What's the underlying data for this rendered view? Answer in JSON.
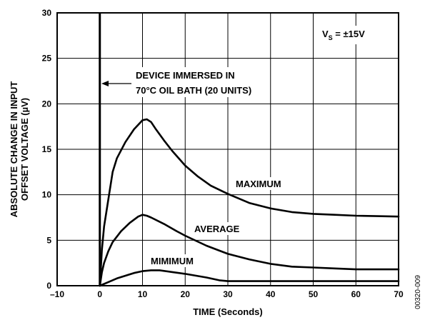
{
  "chart_data": {
    "type": "line",
    "xlabel": "TIME (Seconds)",
    "ylabel_line1": "ABSOLUTE CHANGE IN INPUT",
    "ylabel_line2": "OFFSET VOLTAGE (µV)",
    "xlim": [
      -10,
      70
    ],
    "ylim": [
      0,
      30
    ],
    "x_ticks": [
      -10,
      0,
      10,
      20,
      30,
      40,
      50,
      60,
      70
    ],
    "x_tick_labels": [
      "–10",
      "0",
      "10",
      "20",
      "30",
      "40",
      "50",
      "60",
      "70"
    ],
    "y_ticks": [
      0,
      5,
      10,
      15,
      20,
      25,
      30
    ],
    "y_tick_labels": [
      "0",
      "5",
      "10",
      "15",
      "20",
      "25",
      "30"
    ],
    "grid": true,
    "legend": "none",
    "series": [
      {
        "name": "MAXIMUM",
        "points": [
          [
            0,
            0
          ],
          [
            0.5,
            4
          ],
          [
            1,
            6.5
          ],
          [
            2,
            9.5
          ],
          [
            3,
            12.5
          ],
          [
            4,
            14
          ],
          [
            6,
            15.8
          ],
          [
            8,
            17.2
          ],
          [
            10,
            18.2
          ],
          [
            11,
            18.3
          ],
          [
            12,
            18
          ],
          [
            13,
            17.3
          ],
          [
            15,
            16
          ],
          [
            17,
            14.8
          ],
          [
            20,
            13.2
          ],
          [
            23,
            12
          ],
          [
            26,
            11
          ],
          [
            30,
            10.1
          ],
          [
            35,
            9.1
          ],
          [
            40,
            8.5
          ],
          [
            45,
            8.1
          ],
          [
            50,
            7.9
          ],
          [
            55,
            7.8
          ],
          [
            60,
            7.7
          ],
          [
            65,
            7.65
          ],
          [
            70,
            7.6
          ]
        ]
      },
      {
        "name": "AVERAGE",
        "points": [
          [
            0,
            0
          ],
          [
            0.5,
            1.5
          ],
          [
            1,
            2.5
          ],
          [
            2,
            3.8
          ],
          [
            3,
            4.8
          ],
          [
            5,
            6
          ],
          [
            7,
            6.9
          ],
          [
            9,
            7.6
          ],
          [
            10,
            7.8
          ],
          [
            11,
            7.7
          ],
          [
            12,
            7.5
          ],
          [
            15,
            6.8
          ],
          [
            18,
            6
          ],
          [
            20,
            5.5
          ],
          [
            25,
            4.4
          ],
          [
            30,
            3.5
          ],
          [
            35,
            2.9
          ],
          [
            40,
            2.4
          ],
          [
            45,
            2.1
          ],
          [
            50,
            2.0
          ],
          [
            55,
            1.9
          ],
          [
            60,
            1.8
          ],
          [
            65,
            1.8
          ],
          [
            70,
            1.8
          ]
        ]
      },
      {
        "name": "MIMIMUM",
        "points": [
          [
            0,
            0
          ],
          [
            2,
            0.4
          ],
          [
            4,
            0.8
          ],
          [
            6,
            1.1
          ],
          [
            8,
            1.4
          ],
          [
            10,
            1.6
          ],
          [
            12,
            1.7
          ],
          [
            14,
            1.7
          ],
          [
            17,
            1.5
          ],
          [
            20,
            1.3
          ],
          [
            25,
            0.9
          ],
          [
            28,
            0.6
          ],
          [
            30,
            0.5
          ],
          [
            35,
            0.5
          ],
          [
            40,
            0.5
          ],
          [
            50,
            0.5
          ],
          [
            60,
            0.5
          ],
          [
            70,
            0.5
          ]
        ]
      }
    ],
    "vertical_marker_x": 0,
    "annotations": {
      "immersion_line1": "DEVICE IMMERSED IN",
      "immersion_line2": "70°C OIL BATH (20 UNITS)",
      "supply_prefix": "V",
      "supply_sub": "S",
      "supply_value": " = ±15V",
      "label_max": "MAXIMUM",
      "label_avg": "AVERAGE",
      "label_min": "MIMIMUM"
    },
    "figure_id": "00320-009"
  }
}
